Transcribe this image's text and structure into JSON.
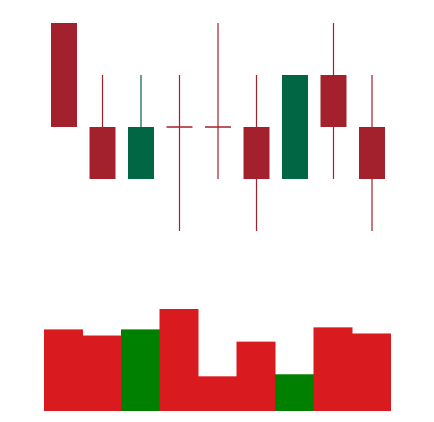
{
  "chart_data": {
    "type": "candlestick",
    "title": "",
    "xlabel": "",
    "ylabel": "",
    "ylim": [
      0,
      10
    ],
    "grid": false,
    "legend": "none",
    "candles": [
      {
        "open": 10,
        "close": 6,
        "high": 10,
        "low": 6
      },
      {
        "open": 6,
        "close": 4,
        "high": 8,
        "low": 4
      },
      {
        "open": 4,
        "close": 6,
        "high": 8,
        "low": 4
      },
      {
        "open": 6,
        "close": 6,
        "high": 8,
        "low": 2
      },
      {
        "open": 6,
        "close": 6,
        "high": 10,
        "low": 4
      },
      {
        "open": 6,
        "close": 4,
        "high": 8,
        "low": 2
      },
      {
        "open": 4,
        "close": 8,
        "high": 8,
        "low": 4
      },
      {
        "open": 8,
        "close": 6,
        "high": 10,
        "low": 4
      },
      {
        "open": 6,
        "close": 4,
        "high": 8,
        "low": 2
      }
    ],
    "volume": {
      "ylim": [
        0,
        100
      ],
      "values": [
        80,
        74,
        80,
        100,
        34,
        68,
        36,
        82,
        76
      ],
      "directions": [
        "down",
        "down",
        "up",
        "down",
        "down",
        "down",
        "up",
        "down",
        "down"
      ]
    },
    "colors": {
      "candle_up": "#006644",
      "candle_down": "#a3212c",
      "volume_up": "#008000",
      "volume_down": "#d91a1f"
    }
  }
}
